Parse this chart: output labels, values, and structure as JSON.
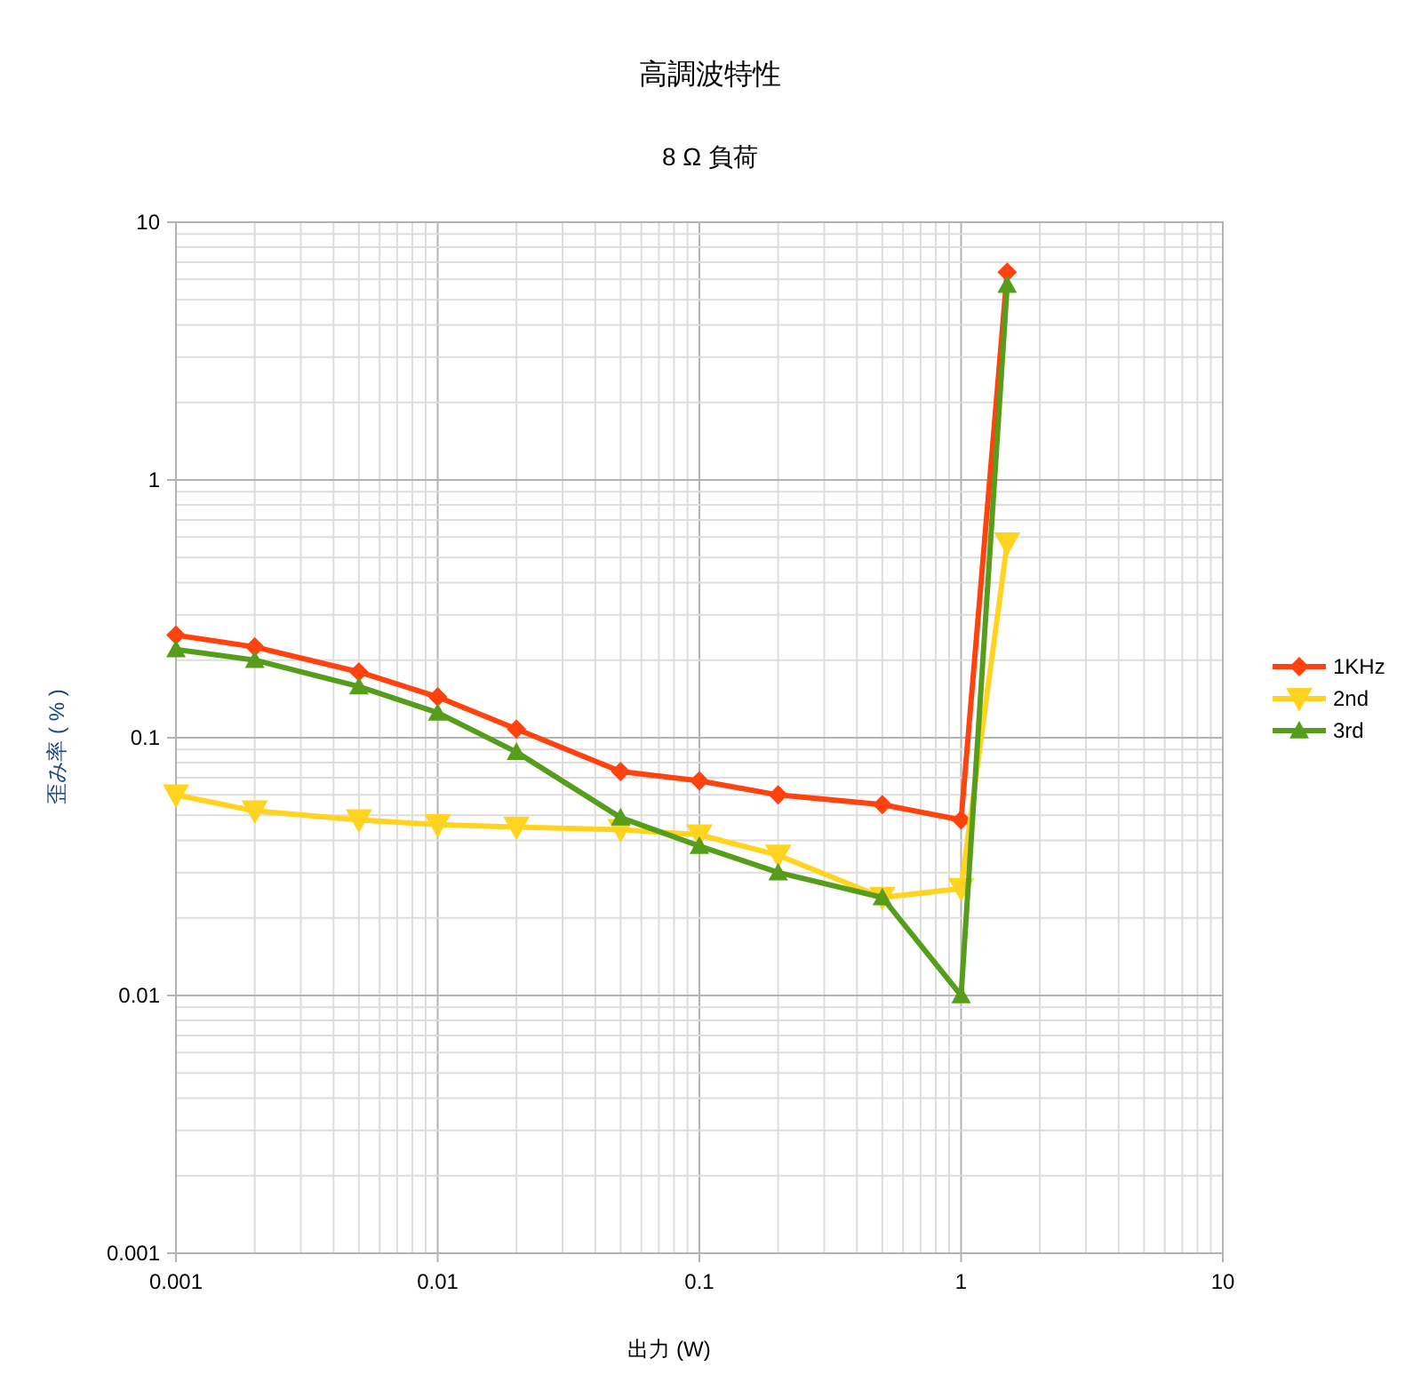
{
  "chart_data": {
    "type": "line",
    "title": "高調波特性",
    "subtitle": "8 Ω 負荷",
    "xlabel": "出力 (W)",
    "ylabel": "歪み率 ( % )",
    "log": "xy",
    "grid": true,
    "legend": "right",
    "line_style": "solid",
    "x": [
      0.001,
      0.002,
      0.005,
      0.01,
      0.02,
      0.05,
      0.1,
      0.2,
      0.5,
      1,
      1.5
    ],
    "xlim": [
      0.001,
      10
    ],
    "xticks": [
      0.001,
      0.01,
      0.1,
      1,
      10
    ],
    "ylim": [
      0.001,
      10
    ],
    "yticks": [
      0.001,
      0.01,
      0.1,
      1,
      10
    ],
    "series": [
      {
        "name": "1KHz",
        "color": "#ff420e",
        "marker": "diamond",
        "values": [
          0.25,
          0.225,
          0.18,
          0.144,
          0.108,
          0.074,
          0.068,
          0.06,
          0.055,
          0.048,
          6.4
        ]
      },
      {
        "name": "2nd",
        "color": "#ffd320",
        "marker": "triangle-down",
        "values": [
          0.06,
          0.052,
          0.048,
          0.046,
          0.045,
          0.044,
          0.042,
          0.035,
          0.024,
          0.026,
          0.57
        ]
      },
      {
        "name": "3rd",
        "color": "#579d1c",
        "marker": "triangle",
        "values": [
          0.22,
          0.2,
          0.158,
          0.125,
          0.088,
          0.049,
          0.038,
          0.03,
          0.024,
          0.01,
          5.7
        ]
      }
    ]
  }
}
